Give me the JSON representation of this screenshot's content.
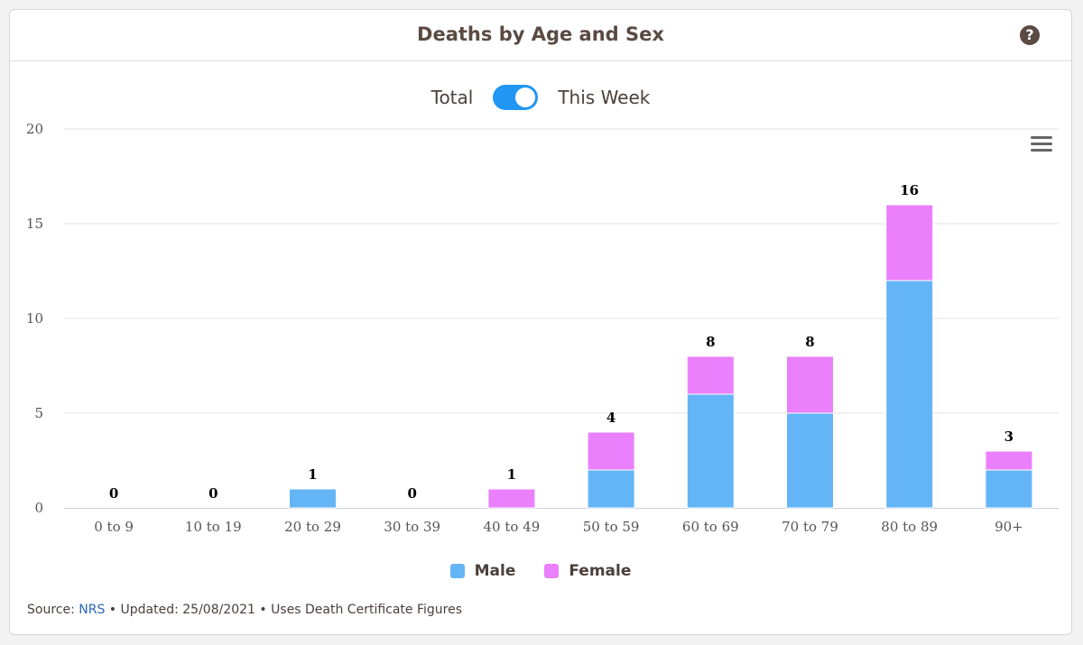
{
  "header": {
    "title": "Deaths by Age and Sex",
    "help_icon": "question-circle-icon"
  },
  "toggle": {
    "left_label": "Total",
    "right_label": "This Week",
    "state": "This Week",
    "color": "#2196f3"
  },
  "menu_icon": "hamburger-menu-icon",
  "chart_data": {
    "type": "bar",
    "stacked": true,
    "categories": [
      "0 to 9",
      "10 to 19",
      "20 to 29",
      "30 to 39",
      "40 to 49",
      "50 to 59",
      "60 to 69",
      "70 to 79",
      "80 to 89",
      "90+"
    ],
    "series": [
      {
        "name": "Male",
        "color": "#64b5f6",
        "values": [
          0,
          0,
          1,
          0,
          0,
          2,
          6,
          5,
          12,
          2
        ]
      },
      {
        "name": "Female",
        "color": "#ea80fc",
        "values": [
          0,
          0,
          0,
          0,
          1,
          2,
          2,
          3,
          4,
          1
        ]
      }
    ],
    "totals": [
      0,
      0,
      1,
      0,
      1,
      4,
      8,
      8,
      16,
      3
    ],
    "ylim": [
      0,
      20
    ],
    "yticks": [
      0,
      5,
      10,
      15,
      20
    ],
    "grid": true,
    "legend": "bottom-center"
  },
  "legend": {
    "items": [
      {
        "label": "Male",
        "color": "#64b5f6"
      },
      {
        "label": "Female",
        "color": "#ea80fc"
      }
    ]
  },
  "footer": {
    "source_prefix": "Source: ",
    "source_link": "NRS",
    "rest": " • Updated: 25/08/2021 • Uses Death Certificate Figures"
  }
}
